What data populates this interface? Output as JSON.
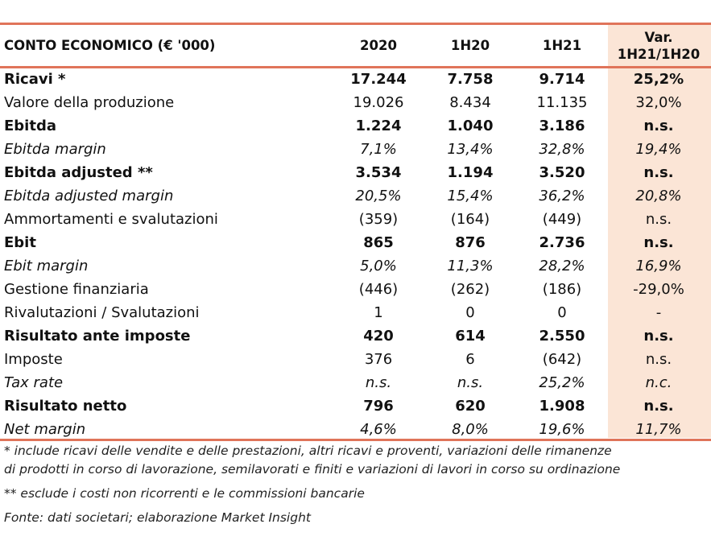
{
  "table": {
    "headers": [
      "CONTO ECONOMICO (€ '000)",
      "2020",
      "1H20",
      "1H21",
      "Var.",
      "1H21/1H20"
    ],
    "rows": [
      {
        "label": "Ricavi *",
        "v2020": "17.244",
        "h120": "7.758",
        "h121": "9.714",
        "var": "25,2%",
        "style": "bold"
      },
      {
        "label": "Valore della produzione",
        "v2020": "19.026",
        "h120": "8.434",
        "h121": "11.135",
        "var": "32,0%",
        "style": "normal"
      },
      {
        "label": "Ebitda",
        "v2020": "1.224",
        "h120": "1.040",
        "h121": "3.186",
        "var": "n.s.",
        "style": "bold"
      },
      {
        "label": "Ebitda margin",
        "v2020": "7,1%",
        "h120": "13,4%",
        "h121": "32,8%",
        "var": "19,4%",
        "style": "italic"
      },
      {
        "label": "Ebitda adjusted **",
        "v2020": "3.534",
        "h120": "1.194",
        "h121": "3.520",
        "var": "n.s.",
        "style": "bold"
      },
      {
        "label": "Ebitda adjusted margin",
        "v2020": "20,5%",
        "h120": "15,4%",
        "h121": "36,2%",
        "var": "20,8%",
        "style": "italic"
      },
      {
        "label": "Ammortamenti e svalutazioni",
        "v2020": "(359)",
        "h120": "(164)",
        "h121": "(449)",
        "var": "n.s.",
        "style": "normal"
      },
      {
        "label": "Ebit",
        "v2020": "865",
        "h120": "876",
        "h121": "2.736",
        "var": "n.s.",
        "style": "bold"
      },
      {
        "label": "Ebit margin",
        "v2020": "5,0%",
        "h120": "11,3%",
        "h121": "28,2%",
        "var": "16,9%",
        "style": "italic"
      },
      {
        "label": "Gestione finanziaria",
        "v2020": "(446)",
        "h120": "(262)",
        "h121": "(186)",
        "var": "-29,0%",
        "style": "normal"
      },
      {
        "label": "Rivalutazioni / Svalutazioni",
        "v2020": "1",
        "h120": "0",
        "h121": "0",
        "var": "-",
        "style": "normal"
      },
      {
        "label": "Risultato ante imposte",
        "v2020": "420",
        "h120": "614",
        "h121": "2.550",
        "var": "n.s.",
        "style": "bold"
      },
      {
        "label": "Imposte",
        "v2020": "376",
        "h120": "6",
        "h121": "(642)",
        "var": "n.s.",
        "style": "normal"
      },
      {
        "label": "Tax rate",
        "v2020": "n.s.",
        "h120": "n.s.",
        "h121": "25,2%",
        "var": "n.c.",
        "style": "italic"
      },
      {
        "label": "Risultato netto",
        "v2020": "796",
        "h120": "620",
        "h121": "1.908",
        "var": "n.s.",
        "style": "bold"
      },
      {
        "label": "Net margin",
        "v2020": "4,6%",
        "h120": "8,0%",
        "h121": "19,6%",
        "var": "11,7%",
        "style": "italic"
      }
    ]
  },
  "notes": {
    "note1_line1": "* include ricavi delle vendite e delle prestazioni, altri ricavi e proventi, variazioni delle rimanenze",
    "note1_line2": "di prodotti in corso di lavorazione, semilavorati e finiti e variazioni di lavori in corso su ordinazione",
    "note2": "**  esclude i costi non ricorrenti e le commissioni bancarie",
    "source": "Fonte: dati societari; elaborazione Market Insight"
  },
  "colors": {
    "rule": "#e0745a",
    "highlight_column": "#fbe5d6",
    "text": "#111111"
  }
}
